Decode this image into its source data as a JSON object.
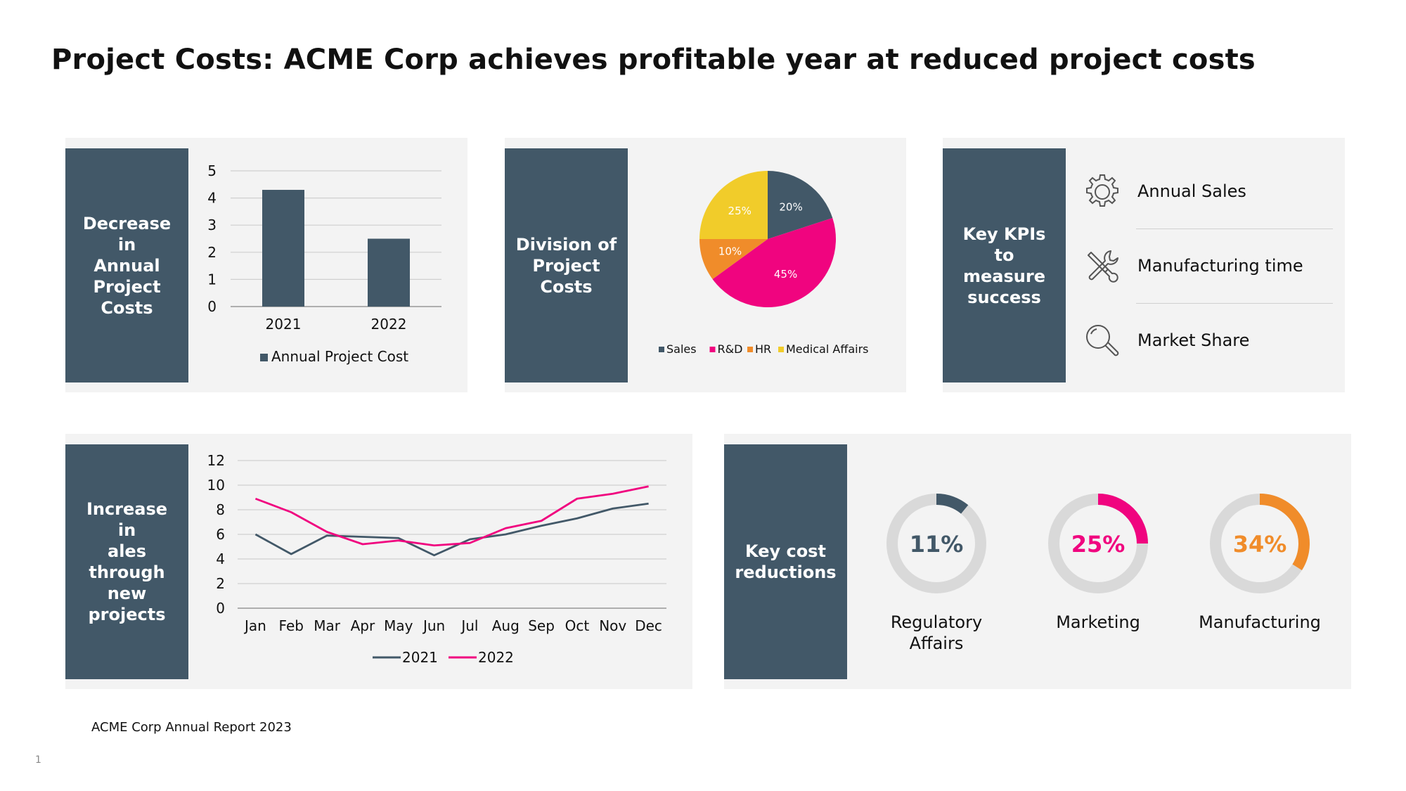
{
  "title": "Project Costs: ACME Corp achieves profitable year at reduced project costs",
  "footer": "ACME Corp Annual Report 2023",
  "page_number": "1",
  "colors": {
    "dark": "#425868",
    "pink": "#f0047f",
    "orange": "#f08c2a",
    "yellow": "#f1cc2a",
    "grey_ring": "#d9d9d9",
    "panel": "#f3f3f3"
  },
  "panels": {
    "bar": {
      "label": "Decrease in\nAnnual\nProject\nCosts"
    },
    "pie": {
      "label": "Division of\nProject\nCosts"
    },
    "kpis": {
      "label": "Key KPIs to\nmeasure\nsuccess",
      "items": [
        {
          "icon": "gear-icon",
          "text": "Annual Sales"
        },
        {
          "icon": "tools-icon",
          "text": "Manufacturing time"
        },
        {
          "icon": "magnifier-icon",
          "text": "Market Share"
        }
      ]
    },
    "line": {
      "label": "Increase in\nales\nthrough\nnew\nprojects"
    },
    "reductions": {
      "label": "Key cost\nreductions",
      "items": [
        {
          "value": 11,
          "display": "11%",
          "label": "Regulatory\nAffairs",
          "color": "#425868"
        },
        {
          "value": 25,
          "display": "25%",
          "label": "Marketing",
          "color": "#f0047f"
        },
        {
          "value": 34,
          "display": "34%",
          "label": "Manufacturing",
          "color": "#f08c2a"
        }
      ]
    }
  },
  "chart_data": [
    {
      "type": "bar",
      "categories": [
        "2021",
        "2022"
      ],
      "series": [
        {
          "name": "Annual Project Cost",
          "values": [
            4.3,
            2.5
          ],
          "color": "#425868"
        }
      ],
      "ylim": [
        0,
        5
      ],
      "yticks": [
        "0",
        "1",
        "2",
        "3",
        "4",
        "5"
      ],
      "grid": true,
      "legend": "bottom"
    },
    {
      "type": "pie",
      "slices": [
        {
          "name": "Sales",
          "value": 20,
          "label": "20%",
          "color": "#425868"
        },
        {
          "name": "R&D",
          "value": 45,
          "label": "45%",
          "color": "#f0047f"
        },
        {
          "name": "HR",
          "value": 10,
          "label": "10%",
          "color": "#f08c2a"
        },
        {
          "name": "Medical Affairs",
          "value": 25,
          "label": "25%",
          "color": "#f1cc2a"
        }
      ],
      "legend": "bottom"
    },
    {
      "type": "line",
      "x": [
        "Jan",
        "Feb",
        "Mar",
        "Apr",
        "May",
        "Jun",
        "Jul",
        "Aug",
        "Sep",
        "Oct",
        "Nov",
        "Dec"
      ],
      "series": [
        {
          "name": "2021",
          "values": [
            6.0,
            4.4,
            5.9,
            5.8,
            5.7,
            4.3,
            5.6,
            6.0,
            6.7,
            7.3,
            8.1,
            8.5
          ],
          "color": "#425868"
        },
        {
          "name": "2022",
          "values": [
            8.9,
            7.8,
            6.2,
            5.2,
            5.5,
            5.1,
            5.3,
            6.5,
            7.1,
            8.9,
            9.3,
            9.9
          ],
          "color": "#f0047f"
        }
      ],
      "ylim": [
        0,
        12
      ],
      "yticks": [
        "0",
        "2",
        "4",
        "6",
        "8",
        "10",
        "12"
      ],
      "grid": true,
      "legend": "bottom"
    }
  ]
}
